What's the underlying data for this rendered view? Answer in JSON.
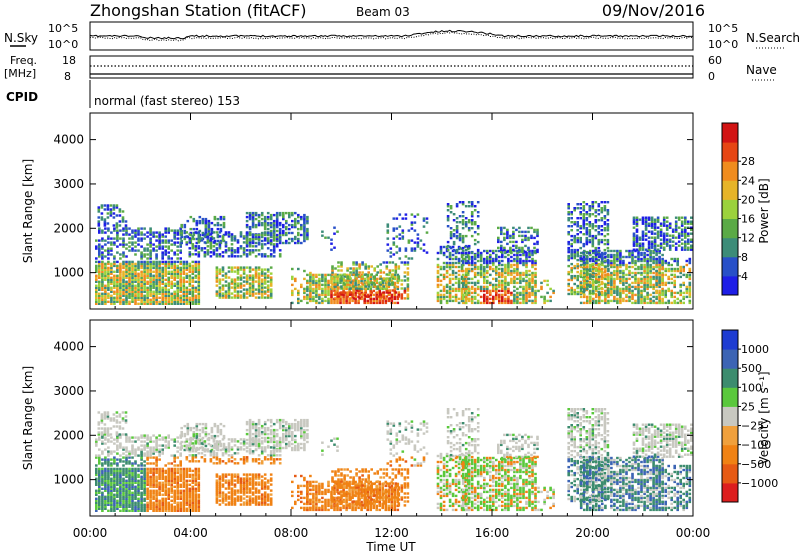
{
  "header": {
    "station": "Zhongshan Station (fitACF)",
    "beam": "Beam 03",
    "date": "09/Nov/2016"
  },
  "top_panel": {
    "nsky_label": "N.Sky",
    "nsearch_label": "N.Search",
    "left_ticks": [
      "10^5",
      "10^0"
    ],
    "right_ticks": [
      "10^5",
      "10^0"
    ]
  },
  "freq_panel": {
    "freq_label": "Freq.",
    "freq_unit": "[MHz]",
    "left_ticks": [
      "18",
      "8"
    ],
    "right_ticks": [
      "60",
      "0"
    ],
    "nave_label": "Nave",
    "cpid_label": "CPID",
    "cpid_text": "normal (fast stereo) 153"
  },
  "chart_data": [
    {
      "type": "heatmap",
      "name": "power",
      "ylabel": "Slant Range [km]",
      "xlabel": "Time UT",
      "x_ticks": [
        "00:00",
        "04:00",
        "08:00",
        "12:00",
        "16:00",
        "20:00",
        "00:00"
      ],
      "xlim_hours": [
        0,
        24
      ],
      "y_ticks": [
        1000,
        2000,
        3000,
        4000
      ],
      "ylim": [
        180,
        4600
      ],
      "colorbar": {
        "label": "Power [dB]",
        "ticks": [
          "4",
          "8",
          "12",
          "16",
          "20",
          "24",
          "28"
        ],
        "colors": [
          "#1e1ee6",
          "#2850c8",
          "#3c8c78",
          "#5aaa46",
          "#9bd23c",
          "#e6b428",
          "#f08c1e",
          "#e64614",
          "#d21414"
        ]
      }
    },
    {
      "type": "heatmap",
      "name": "velocity",
      "ylabel": "Slant Range [km]",
      "xlabel": "Time UT",
      "x_ticks": [
        "00:00",
        "04:00",
        "08:00",
        "12:00",
        "16:00",
        "20:00",
        "00:00"
      ],
      "xlim_hours": [
        0,
        24
      ],
      "y_ticks": [
        1000,
        2000,
        3000,
        4000
      ],
      "ylim": [
        180,
        4600
      ],
      "colorbar": {
        "label": "Velocity [m s⁻¹]",
        "ticks": [
          "1000",
          "500",
          "100",
          "25",
          "−25",
          "−100",
          "−500",
          "−1000"
        ],
        "colors": [
          "#1e3cd2",
          "#3c64b4",
          "#3c8c6e",
          "#5ac83c",
          "#c8c8c0",
          "#f0a03c",
          "#f08214",
          "#e65a14",
          "#dc1e1e"
        ]
      }
    }
  ]
}
